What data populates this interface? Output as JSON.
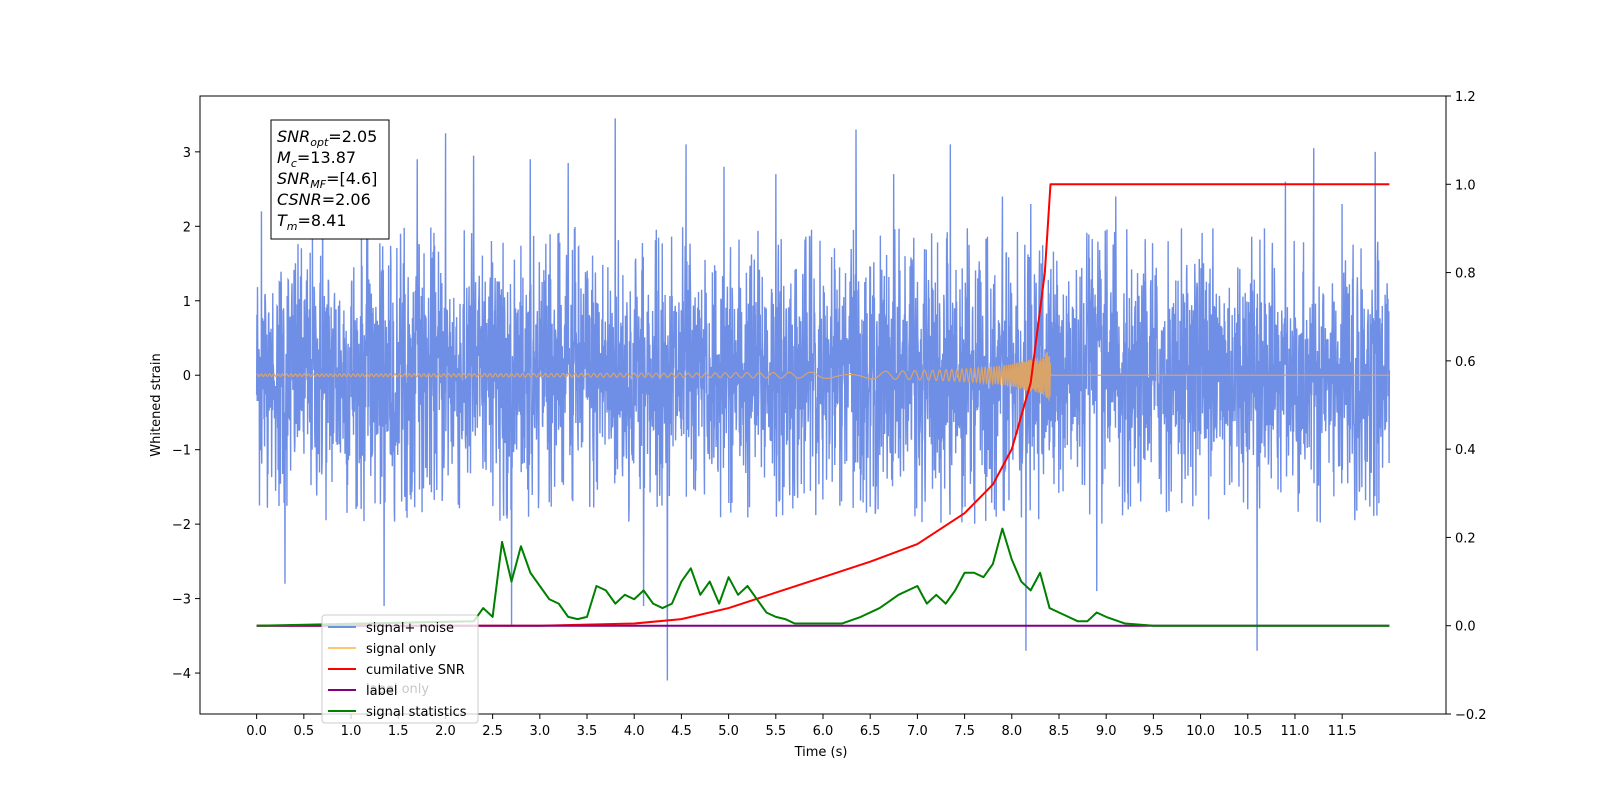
{
  "chart_data": {
    "type": "line",
    "xlabel": "Time (s)",
    "ylabel": "Whitened strain",
    "xlim": [
      -0.6,
      12.6
    ],
    "ylim": [
      -4.55,
      3.75
    ],
    "y2lim": [
      -0.2,
      1.2
    ],
    "x_ticks": [
      "0.0",
      "0.5",
      "1.0",
      "1.5",
      "2.0",
      "2.5",
      "3.0",
      "3.5",
      "4.0",
      "4.5",
      "5.0",
      "5.5",
      "6.0",
      "6.5",
      "7.0",
      "7.5",
      "8.0",
      "8.5",
      "9.0",
      "9.5",
      "10.0",
      "10.5",
      "11.0",
      "11.5"
    ],
    "y_ticks": [
      "3",
      "2",
      "1",
      "0",
      "−1",
      "−2",
      "−3",
      "−4"
    ],
    "y2_ticks": [
      "1.2",
      "1.0",
      "0.8",
      "0.6",
      "0.4",
      "0.2",
      "0.0",
      "−0.2"
    ],
    "annotation": {
      "lines": [
        {
          "base": "SNR",
          "sub": "opt",
          "value": "=2.05"
        },
        {
          "base": "M",
          "sub": "c",
          "value": "=13.87"
        },
        {
          "base": "SNR",
          "sub": "MF",
          "value": "=[4.6]"
        },
        {
          "base": "CSNR",
          "sub": "",
          "value": "=2.06"
        },
        {
          "base": "T",
          "sub": "m",
          "value": "=8.41"
        }
      ]
    },
    "legend": {
      "placement": "lower-left",
      "entries": [
        "signal+ noise",
        "signal only",
        "cumilative SNR",
        "label",
        "signal statistics"
      ],
      "occluded_text": "label only"
    },
    "series": [
      {
        "name": "signal+ noise",
        "color": "#6f8ee6",
        "axis": "left",
        "x_range": [
          0.0,
          12.0
        ],
        "typical_min": -1.6,
        "typical_max": 2.0,
        "spikes": [
          {
            "x": 0.05,
            "y": 2.2
          },
          {
            "x": 0.3,
            "y": -2.8
          },
          {
            "x": 0.7,
            "y": 2.5
          },
          {
            "x": 1.35,
            "y": -3.1
          },
          {
            "x": 1.7,
            "y": 2.9
          },
          {
            "x": 2.0,
            "y": 3.25
          },
          {
            "x": 2.3,
            "y": 2.95
          },
          {
            "x": 2.7,
            "y": -3.35
          },
          {
            "x": 2.9,
            "y": 2.9
          },
          {
            "x": 3.3,
            "y": 2.85
          },
          {
            "x": 3.8,
            "y": 3.45
          },
          {
            "x": 4.1,
            "y": -3.1
          },
          {
            "x": 4.35,
            "y": -4.1
          },
          {
            "x": 4.55,
            "y": 3.1
          },
          {
            "x": 4.95,
            "y": 2.8
          },
          {
            "x": 5.5,
            "y": 2.7
          },
          {
            "x": 6.35,
            "y": 3.3
          },
          {
            "x": 6.75,
            "y": 2.7
          },
          {
            "x": 7.35,
            "y": 3.1
          },
          {
            "x": 7.9,
            "y": 2.4
          },
          {
            "x": 8.15,
            "y": -3.7
          },
          {
            "x": 8.2,
            "y": 2.3
          },
          {
            "x": 8.9,
            "y": -2.9
          },
          {
            "x": 9.1,
            "y": 2.4
          },
          {
            "x": 10.6,
            "y": -3.7
          },
          {
            "x": 10.9,
            "y": 2.6
          },
          {
            "x": 11.2,
            "y": 3.05
          },
          {
            "x": 11.5,
            "y": 2.3
          },
          {
            "x": 11.85,
            "y": 3.0
          }
        ]
      },
      {
        "name": "signal only",
        "color": "#d9a46a",
        "axis": "left",
        "x_range": [
          0.0,
          12.0
        ],
        "peak_time": 8.41,
        "peak_amplitude": 0.4
      },
      {
        "name": "cumilative SNR",
        "color": "#ff0000",
        "axis": "right",
        "x": [
          0.0,
          3.0,
          4.0,
          4.5,
          5.0,
          5.5,
          6.0,
          6.5,
          7.0,
          7.5,
          7.8,
          8.0,
          8.2,
          8.35,
          8.41,
          12.0
        ],
        "y": [
          0.0,
          0.0,
          0.005,
          0.015,
          0.04,
          0.075,
          0.11,
          0.145,
          0.185,
          0.255,
          0.32,
          0.4,
          0.55,
          0.8,
          1.0,
          1.0
        ]
      },
      {
        "name": "label",
        "color": "#800080",
        "axis": "right",
        "x": [
          0.0,
          12.0
        ],
        "y": [
          0.0,
          0.0
        ]
      },
      {
        "name": "signal statistics",
        "color": "#008000",
        "axis": "right",
        "x": [
          0.0,
          2.3,
          2.4,
          2.5,
          2.6,
          2.7,
          2.8,
          2.9,
          3.0,
          3.1,
          3.2,
          3.3,
          3.4,
          3.5,
          3.6,
          3.7,
          3.8,
          3.9,
          4.0,
          4.1,
          4.2,
          4.3,
          4.4,
          4.5,
          4.6,
          4.7,
          4.8,
          4.9,
          5.0,
          5.1,
          5.2,
          5.3,
          5.4,
          5.5,
          5.6,
          5.7,
          5.8,
          6.0,
          6.2,
          6.4,
          6.6,
          6.8,
          7.0,
          7.1,
          7.2,
          7.3,
          7.4,
          7.5,
          7.6,
          7.7,
          7.8,
          7.9,
          8.0,
          8.1,
          8.2,
          8.3,
          8.4,
          8.5,
          8.6,
          8.7,
          8.8,
          8.9,
          9.0,
          9.2,
          9.5,
          12.0
        ],
        "y": [
          0.0,
          0.01,
          0.04,
          0.02,
          0.19,
          0.1,
          0.18,
          0.12,
          0.09,
          0.06,
          0.05,
          0.02,
          0.015,
          0.02,
          0.09,
          0.08,
          0.05,
          0.07,
          0.06,
          0.08,
          0.05,
          0.04,
          0.05,
          0.1,
          0.13,
          0.07,
          0.1,
          0.05,
          0.11,
          0.07,
          0.09,
          0.06,
          0.03,
          0.02,
          0.015,
          0.005,
          0.005,
          0.005,
          0.005,
          0.02,
          0.04,
          0.07,
          0.09,
          0.05,
          0.07,
          0.05,
          0.08,
          0.12,
          0.12,
          0.11,
          0.14,
          0.22,
          0.15,
          0.1,
          0.08,
          0.12,
          0.04,
          0.03,
          0.02,
          0.01,
          0.01,
          0.03,
          0.02,
          0.005,
          0.0,
          0.0
        ]
      }
    ]
  }
}
